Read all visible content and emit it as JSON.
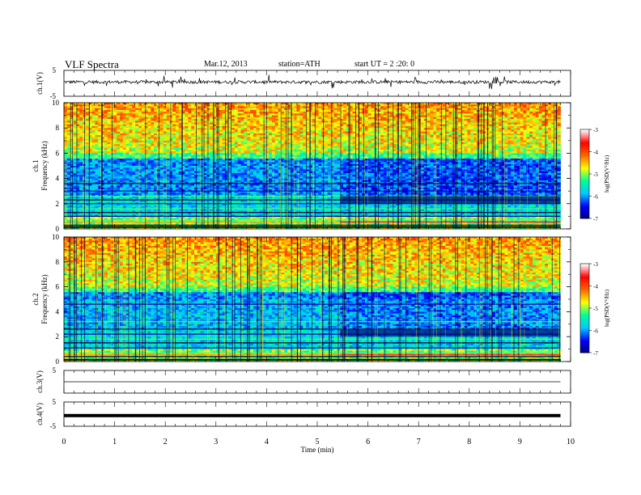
{
  "header": {
    "title": "VLF  Spectra",
    "date": "Mar.12, 2013",
    "station": "station=ATH",
    "start": "start  UT  =   2  :20: 0"
  },
  "chart_data": [
    {
      "type": "line",
      "panel": "ch1-waveform",
      "ylabel": "ch.1(V)",
      "ylim": [
        -5,
        5
      ],
      "yticks": [
        "5",
        "-5"
      ],
      "xlim": [
        0,
        10
      ],
      "trace": "noisy baseline near +0.5 V with frequent spikes"
    },
    {
      "type": "heatmap",
      "panel": "ch1-spectrogram",
      "ylabel": "ch.1\nFrequency  (kHz)",
      "ylabel_line1": "ch.1",
      "ylabel_line2": "Frequency  (kHz)",
      "ylim": [
        0,
        10
      ],
      "yticks": [
        "0",
        "2",
        "4",
        "6",
        "8",
        "10"
      ],
      "xlim": [
        0,
        9.8
      ],
      "break_minute": 5.45,
      "colorbar": {
        "label": "log(PSD(V²/Hz)",
        "range": [
          -7,
          -3
        ],
        "ticks": [
          "-3",
          "-4",
          "-5",
          "-6",
          "-7"
        ],
        "colors": [
          "#000080",
          "#0000ff",
          "#00c8ff",
          "#00ff96",
          "#ffff00",
          "#ff6400",
          "#ff0000",
          "#ffffff"
        ]
      }
    },
    {
      "type": "heatmap",
      "panel": "ch2-spectrogram",
      "ylabel": "ch.2\nFrequency  (kHz)",
      "ylabel_line1": "ch.2",
      "ylabel_line2": "Frequency  (kHz)",
      "ylim": [
        0,
        10
      ],
      "yticks": [
        "0",
        "2",
        "4",
        "6",
        "8",
        "10"
      ],
      "xlim": [
        0,
        9.8
      ],
      "break_minute": 5.45,
      "colorbar": {
        "label": "log(PSD(V²/Hz)",
        "range": [
          -7,
          -3
        ],
        "ticks": [
          "-3",
          "-4",
          "-5",
          "-6",
          "-7"
        ]
      }
    },
    {
      "type": "line",
      "panel": "ch3-waveform",
      "ylabel": "ch.3(V)",
      "ylim": [
        -5,
        5
      ],
      "yticks": [
        "5"
      ],
      "trace": "flat near 0 V"
    },
    {
      "type": "line",
      "panel": "ch4-waveform",
      "ylabel": "ch.4(V)",
      "ylim": [
        -5,
        5
      ],
      "yticks": [
        "5",
        "-5"
      ],
      "trace": "thick band near -1 V"
    },
    {
      "type": "axis",
      "panel": "time-axis",
      "xlabel": "Time  (min)",
      "xlim": [
        0,
        10
      ],
      "xticks": [
        "0",
        "1",
        "2",
        "3",
        "4",
        "5",
        "6",
        "7",
        "8",
        "9",
        "10"
      ]
    }
  ]
}
